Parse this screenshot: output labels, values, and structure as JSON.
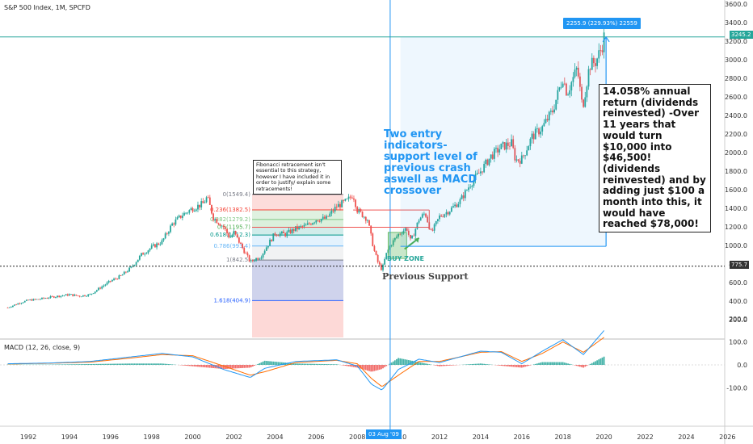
{
  "header": {
    "title": "S&P 500 Index, 1M, SPCFD"
  },
  "macd": {
    "title": "MACD (12, 26, close, 9)",
    "colors": {
      "macd": "#2196f3",
      "signal": "#ff6d00",
      "hist_pos": "#26a69a",
      "hist_neg": "#ef5350"
    }
  },
  "annotations": {
    "fib_note": "Fibonacci retracement isn't essential to this strategy, however I have included it in order to justify/ explain some retracements!",
    "entry_note": "Two entry indicators- support level of previous crash aswell as MACD crossover",
    "return_note": "14.058% annual return (dividends reinvested) -Over 11 years that would turn $10,000 into $46,500! (dividends reinvested) and by adding just $100 a month into this, it would have reached $78,000!",
    "buy_zone": "BUY ZONE",
    "previous_support": "Previous Support",
    "measure_label": "2255.9 (229.93%) 22559",
    "crosshair_date": "03 Aug '09",
    "price_label_current": "3245.2",
    "price_label_support": "775.7"
  },
  "chart_data": {
    "type": "candlestick",
    "title": "S&P 500 Index, 1M, SPCFD",
    "x_ticks": [
      "1992",
      "1994",
      "1996",
      "1998",
      "2000",
      "2002",
      "2004",
      "2006",
      "2008",
      "2010",
      "2012",
      "2014",
      "2016",
      "2018",
      "2020",
      "2022",
      "2024",
      "2026"
    ],
    "y_ticks": [
      "200.0",
      "400.0",
      "600.0",
      "800.0",
      "1000.0",
      "1200.0",
      "1400.0",
      "1600.0",
      "1800.0",
      "2000.0",
      "2200.0",
      "2400.0",
      "2600.0",
      "2800.0",
      "3000.0",
      "3200.0",
      "3400.0",
      "3600.0"
    ],
    "macd_ticks": [
      "200.0",
      "100.0",
      "0.0",
      "-100.0"
    ],
    "series": [
      {
        "name": "S&P 500",
        "points": [
          [
            1991.0,
            330
          ],
          [
            1991.5,
            375
          ],
          [
            1992.0,
            410
          ],
          [
            1992.5,
            420
          ],
          [
            1993.0,
            440
          ],
          [
            1993.5,
            455
          ],
          [
            1994.0,
            470
          ],
          [
            1994.5,
            455
          ],
          [
            1995.0,
            470
          ],
          [
            1995.5,
            545
          ],
          [
            1996.0,
            615
          ],
          [
            1996.5,
            670
          ],
          [
            1997.0,
            760
          ],
          [
            1997.5,
            900
          ],
          [
            1998.0,
            980
          ],
          [
            1998.5,
            1040
          ],
          [
            1999.0,
            1230
          ],
          [
            1999.5,
            1330
          ],
          [
            2000.0,
            1400
          ],
          [
            2000.5,
            1450
          ],
          [
            2000.7,
            1520
          ],
          [
            2001.0,
            1300
          ],
          [
            2001.5,
            1200
          ],
          [
            2001.8,
            1080
          ],
          [
            2002.0,
            1140
          ],
          [
            2002.5,
            940
          ],
          [
            2002.8,
            820
          ],
          [
            2003.0,
            850
          ],
          [
            2003.3,
            880
          ],
          [
            2003.6,
            990
          ],
          [
            2004.0,
            1130
          ],
          [
            2004.5,
            1120
          ],
          [
            2005.0,
            1180
          ],
          [
            2005.5,
            1210
          ],
          [
            2006.0,
            1280
          ],
          [
            2006.5,
            1290
          ],
          [
            2007.0,
            1420
          ],
          [
            2007.5,
            1480
          ],
          [
            2007.8,
            1549
          ],
          [
            2008.0,
            1380
          ],
          [
            2008.5,
            1280
          ],
          [
            2008.8,
            960
          ],
          [
            2009.0,
            820
          ],
          [
            2009.2,
            735
          ],
          [
            2009.4,
            900
          ],
          [
            2009.6,
            1000
          ],
          [
            2010.0,
            1120
          ],
          [
            2010.4,
            1190
          ],
          [
            2010.6,
            1040
          ],
          [
            2011.0,
            1280
          ],
          [
            2011.3,
            1350
          ],
          [
            2011.6,
            1130
          ],
          [
            2012.0,
            1310
          ],
          [
            2012.5,
            1380
          ],
          [
            2013.0,
            1480
          ],
          [
            2013.5,
            1660
          ],
          [
            2014.0,
            1800
          ],
          [
            2014.5,
            1960
          ],
          [
            2015.0,
            2060
          ],
          [
            2015.5,
            2100
          ],
          [
            2015.7,
            1920
          ],
          [
            2016.0,
            1930
          ],
          [
            2016.5,
            2170
          ],
          [
            2017.0,
            2270
          ],
          [
            2017.5,
            2450
          ],
          [
            2018.0,
            2810
          ],
          [
            2018.2,
            2640
          ],
          [
            2018.7,
            2910
          ],
          [
            2018.95,
            2480
          ],
          [
            2019.3,
            2940
          ],
          [
            2019.6,
            2980
          ],
          [
            2019.9,
            3140
          ],
          [
            2020.0,
            3245
          ]
        ]
      }
    ],
    "macd_series": [
      {
        "name": "MACD",
        "points": [
          [
            1991,
            5
          ],
          [
            1993,
            8
          ],
          [
            1995,
            15
          ],
          [
            1997,
            35
          ],
          [
            1998.5,
            50
          ],
          [
            2000,
            35
          ],
          [
            2001.5,
            -20
          ],
          [
            2002.8,
            -55
          ],
          [
            2003.5,
            -15
          ],
          [
            2005,
            15
          ],
          [
            2007,
            22
          ],
          [
            2008,
            -5
          ],
          [
            2008.7,
            -85
          ],
          [
            2009.2,
            -110
          ],
          [
            2010,
            -20
          ],
          [
            2011,
            25
          ],
          [
            2012,
            10
          ],
          [
            2014,
            60
          ],
          [
            2015,
            55
          ],
          [
            2016,
            5
          ],
          [
            2017,
            60
          ],
          [
            2018,
            110
          ],
          [
            2019,
            45
          ],
          [
            2020,
            150
          ]
        ]
      },
      {
        "name": "Signal",
        "points": [
          [
            1991,
            4
          ],
          [
            1993,
            7
          ],
          [
            1995,
            12
          ],
          [
            1997,
            30
          ],
          [
            1998.5,
            45
          ],
          [
            2000,
            40
          ],
          [
            2001.5,
            -5
          ],
          [
            2002.8,
            -45
          ],
          [
            2003.5,
            -30
          ],
          [
            2005,
            10
          ],
          [
            2007,
            20
          ],
          [
            2008,
            5
          ],
          [
            2008.7,
            -60
          ],
          [
            2009.2,
            -95
          ],
          [
            2010,
            -45
          ],
          [
            2011,
            15
          ],
          [
            2012,
            15
          ],
          [
            2014,
            55
          ],
          [
            2015,
            58
          ],
          [
            2016,
            15
          ],
          [
            2017,
            50
          ],
          [
            2018,
            100
          ],
          [
            2019,
            55
          ],
          [
            2020,
            120
          ]
        ]
      }
    ],
    "fibonacci": [
      {
        "level": "0",
        "value": 1549.4,
        "color": "#787b86"
      },
      {
        "level": "0.236",
        "value": 1382.5,
        "color": "#f44336"
      },
      {
        "level": "0.382",
        "value": 1279.2,
        "color": "#81c784"
      },
      {
        "level": "0.5",
        "value": 1195.7,
        "color": "#4caf50"
      },
      {
        "level": "0.618",
        "value": 1112.3,
        "color": "#009688"
      },
      {
        "level": "0.786",
        "value": 993.4,
        "color": "#64b5f6"
      },
      {
        "level": "1",
        "value": 842.5,
        "color": "#787b86"
      },
      {
        "level": "1.618",
        "value": 404.9,
        "color": "#2962ff"
      }
    ],
    "support_level": 775.7,
    "current_level": 3245.2,
    "crosshair_x": "03 Aug '09"
  }
}
